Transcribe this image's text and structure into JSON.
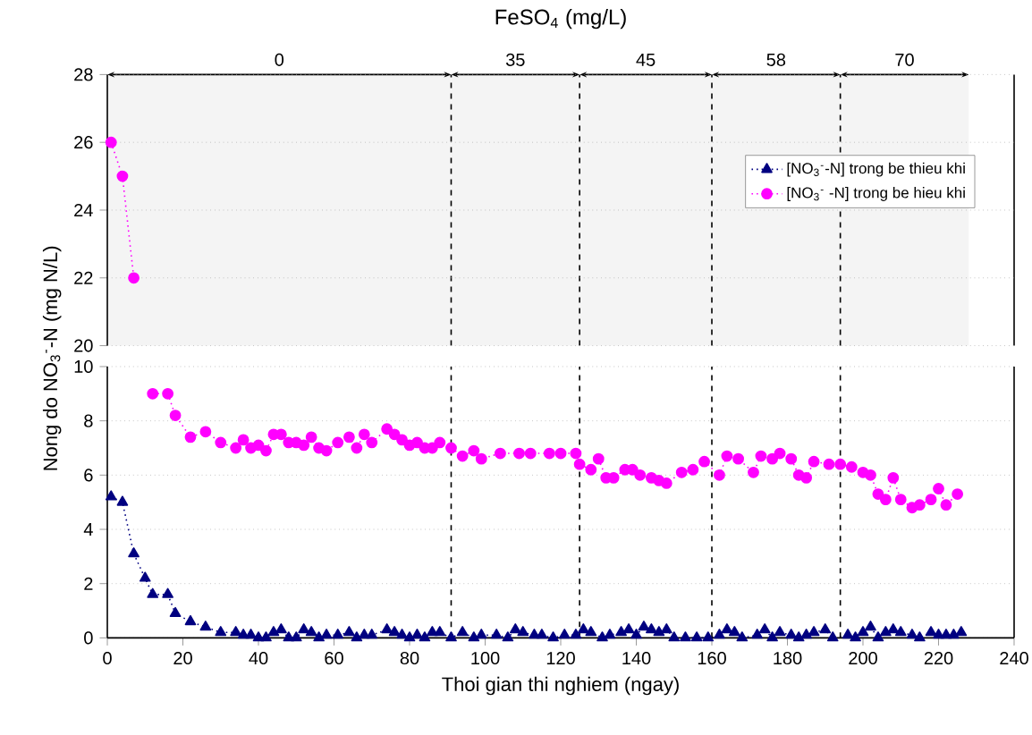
{
  "chart_data": [
    {
      "type": "line",
      "title": "FeSO$_{4}$ (mg/L)",
      "xlim": [
        0,
        240
      ],
      "ylim": [
        20,
        28
      ],
      "yticks": [
        20,
        22,
        24,
        26,
        28
      ],
      "tick_labels": "y",
      "grid": "y",
      "line_style": "dotted",
      "series": [
        {
          "color": "#ff00ff",
          "marker": "circle",
          "x": [
            1,
            4,
            7
          ],
          "values": [
            26,
            25,
            22
          ]
        }
      ],
      "ref_lines": [
        {
          "axis": "x",
          "value": 91,
          "line_style": "dashed",
          "color": "#000000"
        },
        {
          "axis": "x",
          "value": 125,
          "line_style": "dashed",
          "color": "#000000"
        },
        {
          "axis": "x",
          "value": 160,
          "line_style": "dashed",
          "color": "#000000"
        },
        {
          "axis": "x",
          "value": 194,
          "line_style": "dashed",
          "color": "#000000"
        }
      ],
      "bands": [
        {
          "axis": "x",
          "from": 0,
          "to": 91,
          "label": "0",
          "color": "#f4f4f4"
        },
        {
          "axis": "x",
          "from": 91,
          "to": 125,
          "label": "35",
          "color": "#f4f4f4"
        },
        {
          "axis": "x",
          "from": 125,
          "to": 160,
          "label": "45",
          "color": "#f4f4f4"
        },
        {
          "axis": "x",
          "from": 160,
          "to": 194,
          "label": "58",
          "color": "#f4f4f4"
        },
        {
          "axis": "x",
          "from": 194,
          "to": 228,
          "label": "70",
          "color": "#f4f4f4"
        }
      ]
    },
    {
      "type": "line",
      "xlabel": "Thoi gian thi nghiem (ngay)",
      "ylabel": "Nong do NO$_{3}$$^{-}$-N (mg N/L)",
      "xlim": [
        0,
        240
      ],
      "xticks": [
        0,
        20,
        40,
        60,
        80,
        100,
        120,
        140,
        160,
        180,
        200,
        220,
        240
      ],
      "ylim": [
        0,
        10
      ],
      "yticks": [
        0,
        2,
        4,
        6,
        8,
        10
      ],
      "grid": "y",
      "legend": "top right",
      "line_style": "dotted",
      "series": [
        {
          "name": "[NO$_{3}$$^{-}$-N] trong be thieu khi",
          "color": "#000080",
          "marker": "triangle",
          "x": [
            1,
            4,
            7,
            10,
            12,
            16,
            18,
            22,
            26,
            30,
            34,
            36,
            38,
            40,
            42,
            44,
            46,
            48,
            50,
            52,
            54,
            56,
            58,
            61,
            64,
            66,
            68,
            70,
            74,
            76,
            78,
            80,
            82,
            84,
            86,
            88,
            91,
            94,
            97,
            99,
            103,
            106,
            108,
            110,
            113,
            115,
            118,
            121,
            124,
            126,
            128,
            131,
            133,
            136,
            138,
            140,
            142,
            144,
            146,
            148,
            150,
            153,
            156,
            159,
            162,
            164,
            166,
            168,
            172,
            174,
            176,
            178,
            181,
            183,
            185,
            187,
            190,
            192,
            196,
            198,
            200,
            202,
            204,
            206,
            208,
            210,
            213,
            215,
            218,
            220,
            222,
            224,
            226
          ],
          "values": [
            5.2,
            5.0,
            3.1,
            2.2,
            1.6,
            1.6,
            0.9,
            0.6,
            0.4,
            0.2,
            0.2,
            0.1,
            0.1,
            0,
            0,
            0.2,
            0.3,
            0,
            0,
            0.3,
            0.2,
            0,
            0.1,
            0.1,
            0.2,
            0,
            0.1,
            0.1,
            0.3,
            0.2,
            0.1,
            0,
            0.1,
            0,
            0.2,
            0.2,
            0,
            0.2,
            0,
            0.1,
            0.1,
            0,
            0.3,
            0.2,
            0.1,
            0.1,
            0,
            0.1,
            0.1,
            0.3,
            0.2,
            0,
            0.1,
            0.2,
            0.3,
            0.1,
            0.4,
            0.3,
            0.2,
            0.3,
            0,
            0,
            0,
            0,
            0.1,
            0.3,
            0.2,
            0,
            0.1,
            0.3,
            0,
            0.2,
            0.1,
            0,
            0.1,
            0.2,
            0.3,
            0,
            0.1,
            0,
            0.2,
            0.4,
            0,
            0.2,
            0.3,
            0.2,
            0.1,
            0,
            0.2,
            0.1,
            0.1,
            0.1,
            0.2
          ]
        },
        {
          "name": "[NO$_{3}$$^{-}$ -N] trong be hieu khi",
          "color": "#ff00ff",
          "marker": "circle",
          "x": [
            12,
            16,
            18,
            22,
            26,
            30,
            34,
            36,
            38,
            40,
            42,
            44,
            46,
            48,
            50,
            52,
            54,
            56,
            58,
            61,
            64,
            66,
            68,
            70,
            74,
            76,
            78,
            80,
            82,
            84,
            86,
            88,
            91,
            94,
            97,
            99,
            104,
            109,
            112,
            117,
            120,
            124,
            125,
            128,
            130,
            132,
            134,
            137,
            139,
            141,
            144,
            146,
            148,
            152,
            155,
            158,
            162,
            164,
            167,
            171,
            173,
            176,
            178,
            181,
            183,
            185,
            187,
            191,
            194,
            197,
            200,
            202,
            204,
            206,
            208,
            210,
            213,
            215,
            218,
            220,
            222,
            225
          ],
          "values": [
            9,
            9,
            8.2,
            7.4,
            7.6,
            7.2,
            7.0,
            7.3,
            7.0,
            7.1,
            6.9,
            7.5,
            7.5,
            7.2,
            7.2,
            7.1,
            7.4,
            7.0,
            6.9,
            7.2,
            7.4,
            7.0,
            7.5,
            7.2,
            7.7,
            7.5,
            7.3,
            7.1,
            7.2,
            7.0,
            7.0,
            7.2,
            7.0,
            6.7,
            6.9,
            6.6,
            6.8,
            6.8,
            6.8,
            6.8,
            6.8,
            6.8,
            6.4,
            6.2,
            6.6,
            5.9,
            5.9,
            6.2,
            6.2,
            6.0,
            5.9,
            5.8,
            5.7,
            6.1,
            6.2,
            6.5,
            6.0,
            6.7,
            6.6,
            6.1,
            6.7,
            6.6,
            6.8,
            6.6,
            6.0,
            5.9,
            6.5,
            6.4,
            6.4,
            6.3,
            6.1,
            6.0,
            5.3,
            5.1,
            5.9,
            5.1,
            4.8,
            4.9,
            5.1,
            5.5,
            4.9,
            5.3
          ]
        }
      ],
      "ref_lines": [
        {
          "axis": "x",
          "value": 91,
          "line_style": "dashed",
          "color": "#000000"
        },
        {
          "axis": "x",
          "value": 125,
          "line_style": "dashed",
          "color": "#000000"
        },
        {
          "axis": "x",
          "value": 160,
          "line_style": "dashed",
          "color": "#000000"
        },
        {
          "axis": "x",
          "value": 194,
          "line_style": "dashed",
          "color": "#000000"
        }
      ]
    }
  ]
}
